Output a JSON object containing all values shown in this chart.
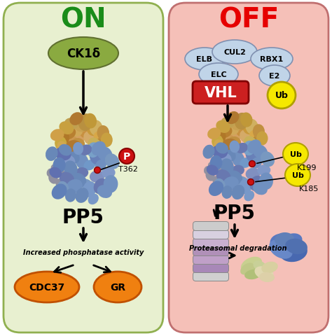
{
  "title_on": "ON",
  "title_off": "OFF",
  "title_on_color": "#1a8c1a",
  "title_off_color": "#e60000",
  "bg_left": "#e8f0d0",
  "bg_right": "#f5c0b8",
  "ck1d_label": "CK1δ",
  "ck1d_color": "#8aaa40",
  "vhl_label": "VHL",
  "vhl_color": "#cc2020",
  "pp5_label": "PP5",
  "t362_label": "T362",
  "p_label": "P",
  "p_color": "#cc2020",
  "elb_label": "ELB",
  "elc_label": "ELC",
  "cul2_label": "CUL2",
  "rbx1_label": "RBX1",
  "e2_label": "E2",
  "ub_label": "Ub",
  "ub_color": "#f5e800",
  "k199_label": "K199",
  "k185_label": "K185",
  "increased_label": "Increased phosphatase activity",
  "proteasomal_label": "Proteasomal degradation",
  "cdc37_label": "CDC37",
  "gr_label": "GR",
  "orange_color": "#f08010",
  "orange_dark": "#c05000"
}
